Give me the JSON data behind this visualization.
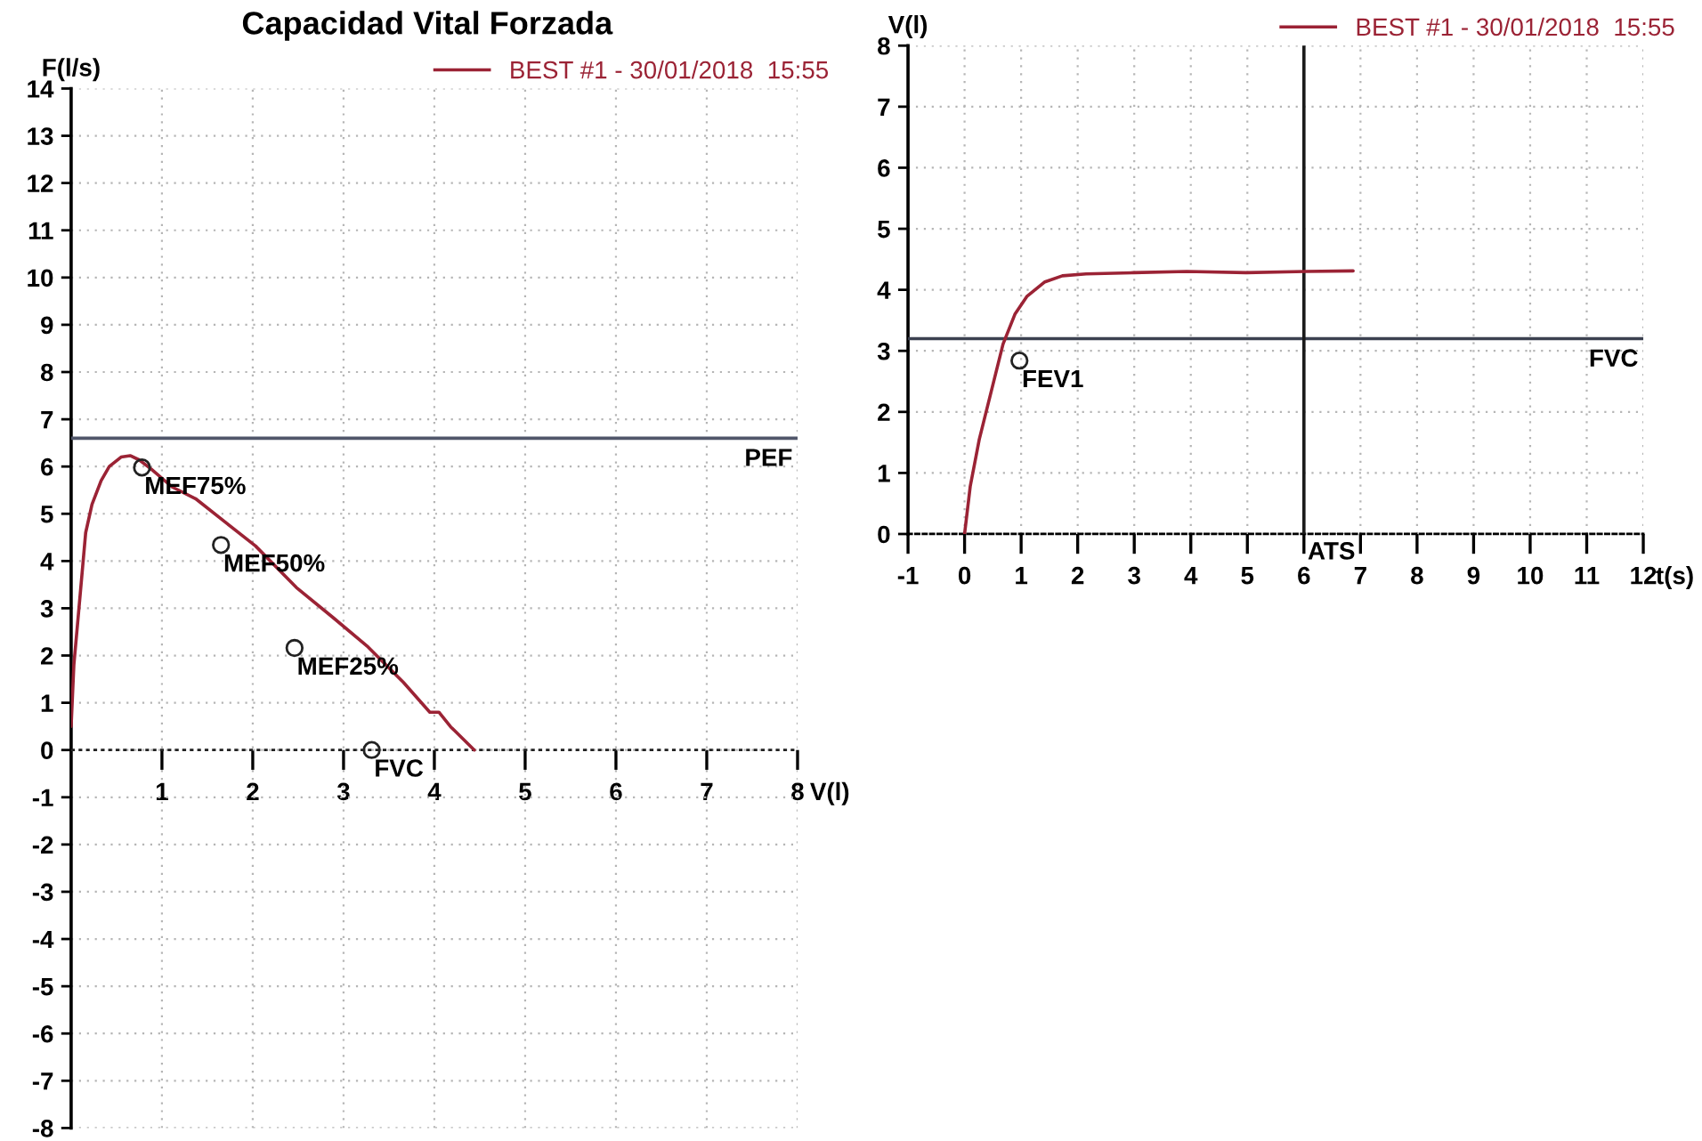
{
  "chart_data": [
    {
      "type": "line",
      "title": "Capacidad Vital Forzada",
      "xlabel": "V(l)",
      "ylabel": "F(l/s)",
      "series": [
        {
          "name": "BEST #1 - 30/01/2018  15:55",
          "color": "#9b2335",
          "x": [
            0,
            0.03,
            0.1,
            0.16,
            0.23,
            0.33,
            0.42,
            0.55,
            0.65,
            0.75,
            0.88,
            1.11,
            1.37,
            1.7,
            2.03,
            2.48,
            2.88,
            3.27,
            3.66,
            3.95,
            4.05,
            4.18,
            4.44
          ],
          "values": [
            0.5,
            1.8,
            3.3,
            4.6,
            5.2,
            5.7,
            6.0,
            6.2,
            6.23,
            6.14,
            5.95,
            5.57,
            5.32,
            4.82,
            4.32,
            3.44,
            2.81,
            2.18,
            1.43,
            0.8,
            0.8,
            0.49,
            0
          ]
        },
        {
          "type": "scatter",
          "marker": "circle",
          "color": "#222222",
          "x": [
            0.78,
            1.65,
            2.46,
            3.31
          ],
          "values": [
            5.98,
            4.34,
            2.16,
            0
          ]
        }
      ],
      "annotations": [
        {
          "text": "MEF75%",
          "x": 0.78,
          "y": 5.98
        },
        {
          "text": "MEF50%",
          "x": 1.65,
          "y": 4.34
        },
        {
          "text": "MEF25%",
          "x": 2.46,
          "y": 2.16
        },
        {
          "text": "FVC",
          "x": 3.31,
          "y": 0
        }
      ],
      "ref_lines": [
        {
          "axis": "y",
          "value": 6.6,
          "label": "PEF",
          "color": "#50566a"
        },
        {
          "axis": "y",
          "value": 0,
          "color": "#222222",
          "line_style": "dotted"
        }
      ],
      "xlim": [
        0,
        8
      ],
      "ylim": [
        -8,
        14
      ],
      "xticks": [
        1,
        2,
        3,
        4,
        5,
        6,
        7,
        8
      ],
      "yticks": [
        -8,
        -7,
        -6,
        -5,
        -4,
        -3,
        -2,
        -1,
        0,
        1,
        2,
        3,
        4,
        5,
        6,
        7,
        8,
        9,
        10,
        11,
        12,
        13,
        14
      ],
      "grid": true,
      "legend": "top right"
    },
    {
      "type": "line",
      "xlabel": "t(s)",
      "ylabel": "V(l)",
      "series": [
        {
          "name": "BEST #1 - 30/01/2018  15:55",
          "color": "#9b2335",
          "x": [
            0,
            0.1,
            0.26,
            0.47,
            0.68,
            0.89,
            1.1,
            1.42,
            1.73,
            2.15,
            2.99,
            3.93,
            4.98,
            6.03,
            6.87
          ],
          "values": [
            0,
            0.78,
            1.55,
            2.33,
            3.11,
            3.6,
            3.89,
            4.13,
            4.23,
            4.26,
            4.28,
            4.3,
            4.28,
            4.3,
            4.31
          ]
        },
        {
          "type": "scatter",
          "marker": "circle",
          "color": "#222222",
          "x": [
            0.97
          ],
          "values": [
            2.84
          ]
        }
      ],
      "annotations": [
        {
          "text": "FEV1",
          "x": 0.97,
          "y": 2.84
        }
      ],
      "ref_lines": [
        {
          "axis": "y",
          "value": 3.2,
          "label": "FVC",
          "color": "#3c4150"
        },
        {
          "axis": "x",
          "value": 6,
          "label": "ATS",
          "color": "#1a1a1a"
        }
      ],
      "xlim": [
        -1,
        12
      ],
      "ylim": [
        0,
        8
      ],
      "xticks": [
        -1,
        0,
        1,
        2,
        3,
        4,
        5,
        6,
        7,
        8,
        9,
        10,
        11,
        12
      ],
      "yticks": [
        0,
        1,
        2,
        3,
        4,
        5,
        6,
        7,
        8
      ],
      "grid": true,
      "legend": "top right"
    }
  ]
}
